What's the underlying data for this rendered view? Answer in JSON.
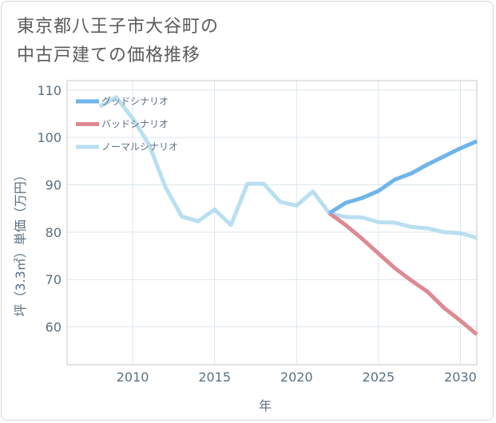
{
  "chart_data": {
    "type": "line",
    "title_lines": [
      "東京都八王子市大谷町の",
      "中古戸建ての価格推移"
    ],
    "xlabel": "年",
    "ylabel": "坪（3.3㎡）単価（万円）",
    "xlim": [
      2006,
      2031
    ],
    "ylim": [
      52,
      112
    ],
    "xticks": [
      2010,
      2015,
      2020,
      2025,
      2030
    ],
    "yticks": [
      60,
      70,
      80,
      90,
      100,
      110
    ],
    "grid": true,
    "legend_position": "top-left",
    "series": [
      {
        "name": "グッドシナリオ",
        "color": "#6fb5ea",
        "x": [
          2022,
          2023,
          2024,
          2025,
          2026,
          2027,
          2028,
          2029,
          2030,
          2031
        ],
        "y": [
          84.0,
          86.2,
          87.2,
          88.7,
          91.1,
          92.4,
          94.3,
          96.0,
          97.7,
          99.2
        ]
      },
      {
        "name": "バッドシナリオ",
        "color": "#dd8a92",
        "x": [
          2022,
          2023,
          2024,
          2025,
          2026,
          2027,
          2028,
          2029,
          2030,
          2031
        ],
        "y": [
          84.0,
          81.5,
          78.6,
          75.5,
          72.4,
          69.8,
          67.4,
          64.0,
          61.3,
          58.4
        ]
      },
      {
        "name": "ノーマルシナリオ",
        "color": "#b9dff0",
        "x": [
          2008,
          2009,
          2010,
          2011,
          2012,
          2013,
          2014,
          2015,
          2016,
          2017,
          2018,
          2019,
          2020,
          2021,
          2022,
          2023,
          2024,
          2025,
          2026,
          2027,
          2028,
          2029,
          2030,
          2031
        ],
        "y": [
          106.5,
          108.5,
          104.0,
          98.5,
          89.5,
          83.3,
          82.3,
          84.8,
          81.5,
          90.2,
          90.2,
          86.4,
          85.6,
          88.6,
          84.0,
          83.2,
          83.1,
          82.1,
          82.0,
          81.1,
          80.8,
          80.0,
          79.8,
          78.8
        ]
      }
    ]
  }
}
